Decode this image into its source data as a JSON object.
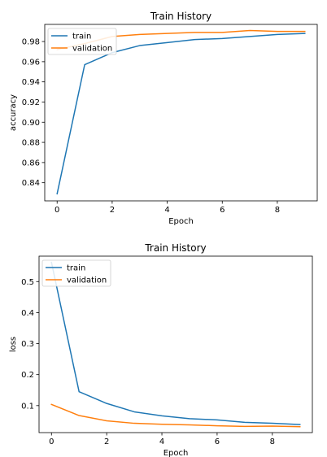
{
  "colors": {
    "train": "#1f77b4",
    "validation": "#ff7f0e",
    "axes": "#000000",
    "legend_border": "#cccccc"
  },
  "chart_data": [
    {
      "type": "line",
      "title": "Train History",
      "xlabel": "Epoch",
      "ylabel": "accuracy",
      "x": [
        0,
        1,
        2,
        3,
        4,
        5,
        6,
        7,
        8,
        9
      ],
      "xlim": [
        -0.45,
        9.45
      ],
      "ylim": [
        0.822,
        0.997
      ],
      "xticks": [
        0,
        2,
        4,
        6,
        8
      ],
      "xtick_labels": [
        "0",
        "2",
        "4",
        "6",
        "8"
      ],
      "yticks": [
        0.84,
        0.86,
        0.88,
        0.9,
        0.92,
        0.94,
        0.96,
        0.98
      ],
      "ytick_labels": [
        "0.84",
        "0.86",
        "0.88",
        "0.90",
        "0.92",
        "0.94",
        "0.96",
        "0.98"
      ],
      "legend_position": "upper-left",
      "grid": false,
      "series": [
        {
          "name": "train",
          "color": "#1f77b4",
          "values": [
            0.829,
            0.957,
            0.969,
            0.976,
            0.979,
            0.982,
            0.983,
            0.985,
            0.987,
            0.988
          ]
        },
        {
          "name": "validation",
          "color": "#ff7f0e",
          "values": [
            0.972,
            0.978,
            0.985,
            0.987,
            0.988,
            0.989,
            0.989,
            0.991,
            0.99,
            0.99
          ]
        }
      ]
    },
    {
      "type": "line",
      "title": "Train History",
      "xlabel": "Epoch",
      "ylabel": "loss",
      "x": [
        0,
        1,
        2,
        3,
        4,
        5,
        6,
        7,
        8,
        9
      ],
      "xlim": [
        -0.45,
        9.45
      ],
      "ylim": [
        0.013,
        0.582
      ],
      "xticks": [
        0,
        2,
        4,
        6,
        8
      ],
      "xtick_labels": [
        "0",
        "2",
        "4",
        "6",
        "8"
      ],
      "yticks": [
        0.1,
        0.2,
        0.3,
        0.4,
        0.5
      ],
      "ytick_labels": [
        "0.1",
        "0.2",
        "0.3",
        "0.4",
        "0.5"
      ],
      "legend_position": "upper-left",
      "grid": false,
      "series": [
        {
          "name": "train",
          "color": "#1f77b4",
          "values": [
            0.562,
            0.145,
            0.107,
            0.08,
            0.067,
            0.058,
            0.054,
            0.046,
            0.043,
            0.039
          ]
        },
        {
          "name": "validation",
          "color": "#ff7f0e",
          "values": [
            0.104,
            0.068,
            0.051,
            0.043,
            0.04,
            0.038,
            0.035,
            0.033,
            0.034,
            0.032
          ]
        }
      ]
    }
  ]
}
